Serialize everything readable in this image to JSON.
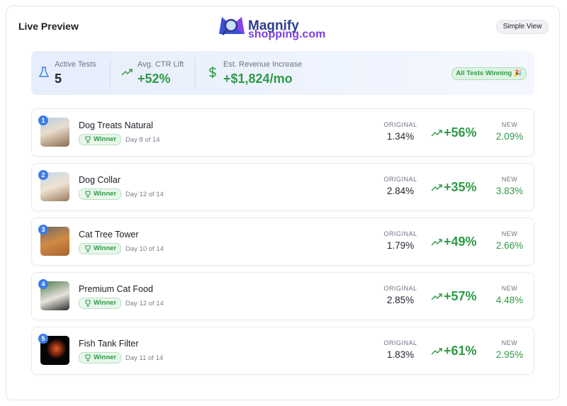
{
  "header": {
    "title": "Live Preview",
    "logo": {
      "line1": "Magnify",
      "line2": "shopping.com"
    },
    "button": "Simple View"
  },
  "stats": [
    {
      "label": "Active Tests",
      "value": "5"
    },
    {
      "label": "Avg. CTR Lift",
      "value": "+52%"
    },
    {
      "label": "Est. Revenue Increase",
      "value": "+$1,824/mo"
    }
  ],
  "status_badge": "All Tests Winning 🎉",
  "tests": [
    {
      "rank": 1,
      "name": "Dog Treats Natural",
      "badge": "Winner",
      "day": "Day 8 of 14",
      "original_label": "ORIGINAL",
      "original": "1.34%",
      "lift": "+56%",
      "new_label": "NEW",
      "new": "2.09%"
    },
    {
      "rank": 2,
      "name": "Dog Collar",
      "badge": "Winner",
      "day": "Day 12 of 14",
      "original_label": "ORIGINAL",
      "original": "2.84%",
      "lift": "+35%",
      "new_label": "NEW",
      "new": "3.83%"
    },
    {
      "rank": 3,
      "name": "Cat Tree Tower",
      "badge": "Winner",
      "day": "Day 10 of 14",
      "original_label": "ORIGINAL",
      "original": "1.79%",
      "lift": "+49%",
      "new_label": "NEW",
      "new": "2.66%"
    },
    {
      "rank": 4,
      "name": "Premium Cat Food",
      "badge": "Winner",
      "day": "Day 12 of 14",
      "original_label": "ORIGINAL",
      "original": "2.85%",
      "lift": "+57%",
      "new_label": "NEW",
      "new": "4.48%"
    },
    {
      "rank": 5,
      "name": "Fish Tank Filter",
      "badge": "Winner",
      "day": "Day 11 of 14",
      "original_label": "ORIGINAL",
      "original": "1.83%",
      "lift": "+61%",
      "new_label": "NEW",
      "new": "2.95%"
    }
  ]
}
